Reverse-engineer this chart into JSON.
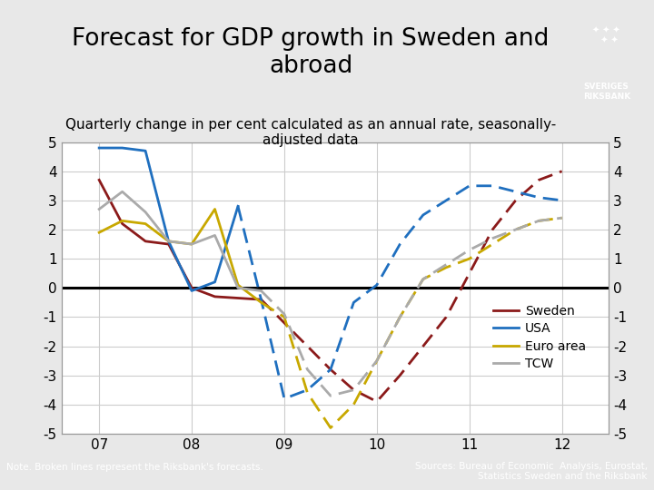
{
  "title": "Forecast for GDP growth in Sweden and\nabroad",
  "subtitle": "Quarterly change in per cent calculated as an annual rate, seasonally-\nadjusted data",
  "title_fontsize": 20,
  "subtitle_fontsize": 12,
  "ylim": [
    -5,
    5
  ],
  "yticks": [
    -5,
    -4,
    -3,
    -2,
    -1,
    0,
    1,
    2,
    3,
    4,
    5
  ],
  "xlim_left": 6.6,
  "xlim_right": 12.5,
  "xtick_positions": [
    7,
    8,
    9,
    10,
    11,
    12
  ],
  "xtick_labels": [
    "07",
    "08",
    "09",
    "10",
    "11",
    "12"
  ],
  "fig_bg": "#e8e8e8",
  "plot_bg": "#ffffff",
  "footer_bg": "#1e3a6e",
  "note_text": "Note. Broken lines represent the Riksbank's forecasts.",
  "source_text": "Sources: Bureau of Economic  Analysis, Eurostat,\nStatistics Sweden and the Riksbank",
  "sweden_solid_x": [
    7.0,
    7.25,
    7.5,
    7.75,
    8.0,
    8.25,
    8.5,
    8.75
  ],
  "sweden_solid_y": [
    3.7,
    2.2,
    1.6,
    1.5,
    0.0,
    -0.3,
    -0.35,
    -0.4
  ],
  "sweden_dashed_x": [
    8.75,
    9.0,
    9.25,
    9.5,
    9.75,
    10.0,
    10.25,
    10.5,
    10.75,
    11.0,
    11.25,
    11.5,
    11.75,
    12.0
  ],
  "sweden_dashed_y": [
    -0.4,
    -1.2,
    -2.0,
    -2.8,
    -3.5,
    -3.9,
    -3.0,
    -2.0,
    -1.0,
    0.5,
    2.0,
    3.0,
    3.7,
    4.0
  ],
  "sweden_color": "#8b1a1a",
  "usa_solid_x": [
    7.0,
    7.25,
    7.5,
    7.75,
    8.0,
    8.25,
    8.5
  ],
  "usa_solid_y": [
    4.8,
    4.8,
    4.7,
    1.6,
    -0.1,
    0.2,
    2.8
  ],
  "usa_dashed_x": [
    8.5,
    8.75,
    9.0,
    9.25,
    9.5,
    9.75,
    10.0,
    10.25,
    10.5,
    10.75,
    11.0,
    11.25,
    11.5,
    11.75,
    12.0
  ],
  "usa_dashed_y": [
    2.8,
    -0.4,
    -3.8,
    -3.5,
    -2.8,
    -0.5,
    0.1,
    1.5,
    2.5,
    3.0,
    3.5,
    3.5,
    3.3,
    3.1,
    3.0
  ],
  "usa_color": "#1f6fbf",
  "euro_solid_x": [
    7.0,
    7.25,
    7.5,
    7.75,
    8.0,
    8.25,
    8.5,
    8.75
  ],
  "euro_solid_y": [
    1.9,
    2.3,
    2.2,
    1.6,
    1.5,
    2.7,
    0.1,
    -0.5
  ],
  "euro_dashed_x": [
    8.75,
    9.0,
    9.25,
    9.5,
    9.75,
    10.0,
    10.25,
    10.5,
    10.75,
    11.0,
    11.25,
    11.5,
    11.75,
    12.0
  ],
  "euro_dashed_y": [
    -0.5,
    -1.0,
    -3.6,
    -4.8,
    -4.0,
    -2.5,
    -1.0,
    0.3,
    0.7,
    1.0,
    1.5,
    2.0,
    2.3,
    2.4
  ],
  "euro_color": "#c8a800",
  "tcw_solid_x": [
    7.0,
    7.25,
    7.5,
    7.75,
    8.0,
    8.25,
    8.5,
    8.75
  ],
  "tcw_solid_y": [
    2.7,
    3.3,
    2.6,
    1.6,
    1.5,
    1.8,
    0.0,
    -0.1
  ],
  "tcw_dashed_x": [
    8.75,
    9.0,
    9.25,
    9.5,
    9.75,
    10.0,
    10.25,
    10.5,
    10.75,
    11.0,
    11.25,
    11.5,
    11.75,
    12.0
  ],
  "tcw_dashed_y": [
    -0.1,
    -0.9,
    -2.8,
    -3.7,
    -3.5,
    -2.5,
    -1.0,
    0.3,
    0.8,
    1.3,
    1.7,
    2.0,
    2.3,
    2.4
  ],
  "tcw_color": "#aaaaaa",
  "legend_labels": [
    "Sweden",
    "USA",
    "Euro area",
    "TCW"
  ],
  "legend_colors": [
    "#8b1a1a",
    "#1f6fbf",
    "#c8a800",
    "#aaaaaa"
  ]
}
